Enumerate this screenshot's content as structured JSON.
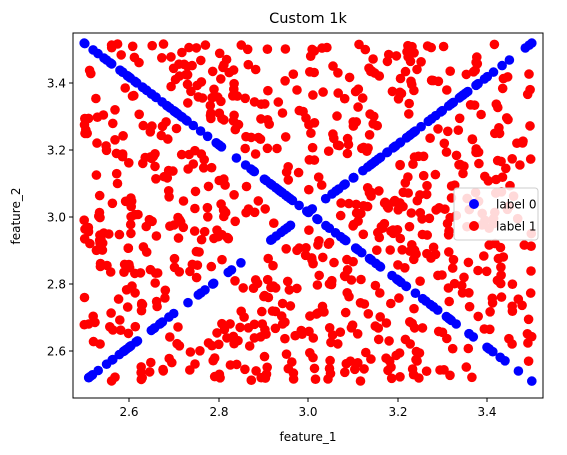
{
  "chart_data": {
    "type": "scatter",
    "title": "Custom 1k",
    "xlabel": "feature_1",
    "ylabel": "feature_2",
    "xlim": [
      2.475,
      3.525
    ],
    "ylim": [
      2.45,
      3.53
    ],
    "xticks": [
      "2.6",
      "2.8",
      "3.0",
      "3.2",
      "3.4"
    ],
    "yticks": [
      "2.6",
      "2.8",
      "3.0",
      "3.2",
      "3.4"
    ],
    "grid": false,
    "legend_position": "center-right",
    "x_range": [
      2.5,
      3.5
    ],
    "y_range": [
      2.5,
      3.5
    ],
    "series": [
      {
        "name": "label 0",
        "color": "#0000ff",
        "description": "points on the two diagonals y = x and y = 6 - x",
        "count": 220,
        "points": [
          [
            2.5,
            3.5
          ],
          [
            2.52,
            3.48
          ],
          [
            2.55,
            3.45
          ],
          [
            2.58,
            3.42
          ],
          [
            2.6,
            3.4
          ],
          [
            2.63,
            3.37
          ],
          [
            2.66,
            3.34
          ],
          [
            2.7,
            3.3
          ],
          [
            2.73,
            3.27
          ],
          [
            2.76,
            3.24
          ],
          [
            2.8,
            3.2
          ],
          [
            2.84,
            3.16
          ],
          [
            2.88,
            3.12
          ],
          [
            2.92,
            3.08
          ],
          [
            2.96,
            3.04
          ],
          [
            3.0,
            3.0
          ],
          [
            3.04,
            2.96
          ],
          [
            3.08,
            2.92
          ],
          [
            3.12,
            2.88
          ],
          [
            3.16,
            2.84
          ],
          [
            3.2,
            2.8
          ],
          [
            3.24,
            2.76
          ],
          [
            3.28,
            2.72
          ],
          [
            3.32,
            2.68
          ],
          [
            3.36,
            2.64
          ],
          [
            3.4,
            2.6
          ],
          [
            3.44,
            2.56
          ],
          [
            3.47,
            2.53
          ],
          [
            3.5,
            2.5
          ],
          [
            2.51,
            2.51
          ],
          [
            2.55,
            2.55
          ],
          [
            2.6,
            2.6
          ],
          [
            2.65,
            2.65
          ],
          [
            2.7,
            2.7
          ],
          [
            2.77,
            2.77
          ],
          [
            2.85,
            2.85
          ],
          [
            2.92,
            2.92
          ],
          [
            3.0,
            3.0
          ],
          [
            3.08,
            3.08
          ],
          [
            3.15,
            3.15
          ],
          [
            3.22,
            3.22
          ],
          [
            3.3,
            3.3
          ],
          [
            3.38,
            3.38
          ],
          [
            3.45,
            3.45
          ],
          [
            3.5,
            3.5
          ]
        ]
      },
      {
        "name": "label 1",
        "color": "#ff0000",
        "description": "points uniformly scattered over [2.5, 3.5] x [2.5, 3.5], off the diagonals",
        "count": 780
      }
    ]
  }
}
